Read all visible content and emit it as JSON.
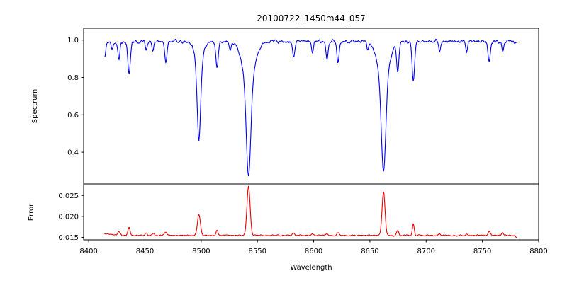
{
  "chart_data": {
    "type": "line",
    "title": "20100722_1450m44_057",
    "xlabel": "Wavelength",
    "xlim": [
      8395.5,
      8800.0
    ],
    "xticks": [
      8400,
      8450,
      8500,
      8550,
      8600,
      8650,
      8700,
      8750,
      8800
    ],
    "xtick_labels": [
      "8400",
      "8450",
      "8500",
      "8550",
      "8600",
      "8650",
      "8700",
      "8750",
      "8800"
    ],
    "x_data_start": 8414.0,
    "x_data_end": 8781.0,
    "x_data_step": 0.5,
    "grid": false,
    "legend": "none",
    "noise_seed": 20100722,
    "panels": [
      {
        "name": "spectrum",
        "ylabel": "Spectrum",
        "line_color": "#0000ee",
        "ylim": [
          0.23,
          1.0633
        ],
        "yticks": [
          0.4,
          0.6,
          0.8,
          1.0
        ],
        "ytick_labels": [
          "0.4",
          "0.6",
          "0.8",
          "1.0"
        ]
      },
      {
        "name": "error",
        "ylabel": "Error",
        "line_color": "#ee0000",
        "ylim": [
          0.0144,
          0.02775
        ],
        "yticks": [
          0.015,
          0.02,
          0.025
        ],
        "ytick_labels": [
          "0.015",
          "0.020",
          "0.025"
        ]
      }
    ],
    "spectrum": {
      "continuum": 0.992,
      "noise_amplitude": 0.011,
      "absorption_lines": [
        {
          "wl": 8414.3,
          "depth": 0.08,
          "sigma": 0.9
        },
        {
          "wl": 8420.5,
          "depth": 0.04,
          "sigma": 0.8
        },
        {
          "wl": 8426.8,
          "depth": 0.1,
          "sigma": 0.9
        },
        {
          "wl": 8435.9,
          "depth": 0.175,
          "sigma": 1.1
        },
        {
          "wl": 8451.0,
          "depth": 0.04,
          "sigma": 0.8
        },
        {
          "wl": 8457.0,
          "depth": 0.05,
          "sigma": 0.8
        },
        {
          "wl": 8468.6,
          "depth": 0.115,
          "sigma": 1.0
        },
        {
          "wl": 8498.0,
          "depth": 0.4,
          "sigma": 1.5
        },
        {
          "wl": 8498.0,
          "depth": 0.12,
          "sigma": 3.5
        },
        {
          "wl": 8514.1,
          "depth": 0.145,
          "sigma": 1.0
        },
        {
          "wl": 8526.0,
          "depth": 0.04,
          "sigma": 0.8
        },
        {
          "wl": 8542.1,
          "depth": 0.52,
          "sigma": 2.0
        },
        {
          "wl": 8542.1,
          "depth": 0.2,
          "sigma": 5.5
        },
        {
          "wl": 8582.3,
          "depth": 0.08,
          "sigma": 0.9
        },
        {
          "wl": 8598.9,
          "depth": 0.06,
          "sigma": 0.8
        },
        {
          "wl": 8611.8,
          "depth": 0.1,
          "sigma": 0.9
        },
        {
          "wl": 8621.6,
          "depth": 0.12,
          "sigma": 0.9
        },
        {
          "wl": 8648.0,
          "depth": 0.04,
          "sigma": 0.8
        },
        {
          "wl": 8662.1,
          "depth": 0.48,
          "sigma": 1.9
        },
        {
          "wl": 8662.1,
          "depth": 0.21,
          "sigma": 5.0
        },
        {
          "wl": 8674.7,
          "depth": 0.155,
          "sigma": 1.0
        },
        {
          "wl": 8688.6,
          "depth": 0.21,
          "sigma": 1.1
        },
        {
          "wl": 8712.0,
          "depth": 0.06,
          "sigma": 0.8
        },
        {
          "wl": 8736.0,
          "depth": 0.05,
          "sigma": 0.8
        },
        {
          "wl": 8756.0,
          "depth": 0.11,
          "sigma": 1.0
        },
        {
          "wl": 8768.0,
          "depth": 0.05,
          "sigma": 0.8
        }
      ]
    },
    "error": {
      "baseline": 0.01545,
      "noise_amplitude": 0.00018,
      "peaks": [
        {
          "wl": 8417.0,
          "height": 0.0004,
          "sigma": 3.0
        },
        {
          "wl": 8426.8,
          "height": 0.001,
          "sigma": 1.0
        },
        {
          "wl": 8435.9,
          "height": 0.0018,
          "sigma": 1.0
        },
        {
          "wl": 8451.0,
          "height": 0.0005,
          "sigma": 0.9
        },
        {
          "wl": 8457.0,
          "height": 0.0005,
          "sigma": 0.9
        },
        {
          "wl": 8468.6,
          "height": 0.0008,
          "sigma": 1.0
        },
        {
          "wl": 8498.0,
          "height": 0.005,
          "sigma": 1.3
        },
        {
          "wl": 8514.1,
          "height": 0.0012,
          "sigma": 0.9
        },
        {
          "wl": 8542.1,
          "height": 0.0118,
          "sigma": 1.4
        },
        {
          "wl": 8582.3,
          "height": 0.0006,
          "sigma": 0.9
        },
        {
          "wl": 8598.9,
          "height": 0.0005,
          "sigma": 0.9
        },
        {
          "wl": 8611.8,
          "height": 0.0006,
          "sigma": 0.9
        },
        {
          "wl": 8621.6,
          "height": 0.0007,
          "sigma": 0.9
        },
        {
          "wl": 8662.1,
          "height": 0.0105,
          "sigma": 1.3
        },
        {
          "wl": 8674.7,
          "height": 0.0013,
          "sigma": 0.9
        },
        {
          "wl": 8688.6,
          "height": 0.0028,
          "sigma": 0.8
        },
        {
          "wl": 8712.0,
          "height": 0.0005,
          "sigma": 0.8
        },
        {
          "wl": 8736.0,
          "height": 0.0004,
          "sigma": 0.8
        },
        {
          "wl": 8756.0,
          "height": 0.001,
          "sigma": 0.9
        },
        {
          "wl": 8768.0,
          "height": 0.0007,
          "sigma": 0.8
        },
        {
          "wl": 8781.0,
          "height": -0.0006,
          "sigma": 1.2
        }
      ]
    },
    "colors": {
      "spectrum_line": "#0000ee",
      "error_line": "#ee0000",
      "axis": "#000000",
      "background": "#ffffff"
    }
  }
}
